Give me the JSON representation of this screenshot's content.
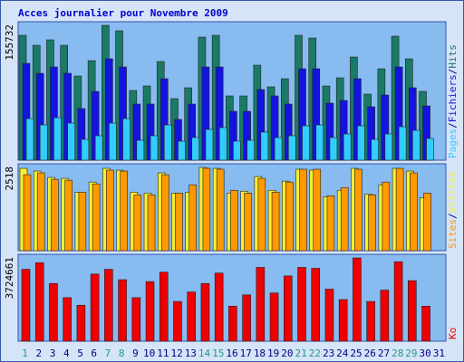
{
  "chart_data": {
    "type": "bar",
    "title": "Acces journalier pour Novembre 2009",
    "categories": [
      "1",
      "2",
      "3",
      "4",
      "5",
      "6",
      "7",
      "8",
      "9",
      "10",
      "11",
      "12",
      "13",
      "14",
      "15",
      "16",
      "17",
      "18",
      "19",
      "20",
      "21",
      "22",
      "23",
      "24",
      "25",
      "26",
      "27",
      "28",
      "29",
      "30",
      "31"
    ],
    "category_colors": [
      "#229988",
      "#000080",
      "#000080",
      "#000080",
      "#000080",
      "#000080",
      "#229988",
      "#229988",
      "#000080",
      "#000080",
      "#000080",
      "#000080",
      "#000080",
      "#229988",
      "#229988",
      "#000080",
      "#000080",
      "#000080",
      "#000080",
      "#000080",
      "#229988",
      "#229988",
      "#000080",
      "#000080",
      "#000080",
      "#000080",
      "#000080",
      "#229988",
      "#229988",
      "#000080",
      "#000080"
    ],
    "legend_separator": "/",
    "panels": [
      {
        "ylim": [
          0,
          155732
        ],
        "series": [
          {
            "name": "Hits",
            "color": "#1a7a66",
            "values": [
              144210,
              132715,
              138985,
              132715,
              97185,
              114950,
              155732,
              149435,
              80465,
              85690,
              113905,
              71060,
              83600,
              142120,
              144210,
              74195,
              74195,
              109725,
              84645,
              94050,
              144210,
              141075,
              85690,
              95095,
              119130,
              76285,
              105545,
              143165,
              117040,
              79420,
              null
            ]
          },
          {
            "name": "Fichiers",
            "color": "#1414e0",
            "values": [
              111815,
              100320,
              107635,
              100320,
              59565,
              79420,
              117040,
              107635,
              64790,
              64790,
              94050,
              47025,
              64790,
              107635,
              107635,
              56430,
              56430,
              81510,
              74195,
              64790,
              105545,
              105545,
              65835,
              68970,
              94050,
              61655,
              75240,
              107635,
              83600,
              62700,
              null
            ]
          },
          {
            "name": "Pages",
            "color": "#33ccff",
            "values": [
              48070,
              40755,
              49115,
              42845,
              24035,
              28215,
              42845,
              48070,
              22990,
              28215,
              40755,
              21945,
              26125,
              35530,
              37620,
              21945,
              22990,
              32395,
              26125,
              28215,
              39710,
              40755,
              26125,
              30305,
              39710,
              24035,
              30305,
              38665,
              34485,
              25080,
              null
            ]
          }
        ]
      },
      {
        "ylim": [
          0,
          2518
        ],
        "series": [
          {
            "name": "Visites",
            "color": "#f8f030",
            "values": [
              2490,
              2407,
              2214,
              2186,
              1771,
              2075,
              2490,
              2435,
              1771,
              1743,
              2352,
              1743,
              1771,
              2518,
              2490,
              1743,
              1799,
              2241,
              1826,
              2103,
              2463,
              2435,
              1633,
              1826,
              2490,
              1716,
              1992,
              2490,
              2407,
              1605,
              null
            ]
          },
          {
            "name": "Sites",
            "color": "#ff9900",
            "values": [
              2297,
              2352,
              2158,
              2131,
              1771,
              2020,
              2435,
              2407,
              1688,
              1688,
              2297,
              1743,
              1992,
              2490,
              2463,
              1826,
              1743,
              2186,
              1771,
              2075,
              2463,
              2463,
              1660,
              1909,
              2463,
              1688,
              2075,
              2490,
              2352,
              1743,
              null
            ]
          }
        ]
      },
      {
        "ylim": [
          0,
          3724661
        ],
        "series": [
          {
            "name": "Ko",
            "color": "#ee0000",
            "values": [
              3216776,
              3513058,
              2581886,
              1946996,
              1608388,
              3005146,
              3216776,
              2751190,
              1946996,
              2666538,
              3089798,
              1777692,
              2200952,
              2581886,
              3047472,
              1566062,
              2073974,
              3301428,
              2158626,
              2920494,
              3301428,
              3259102,
              2327930,
              1862344,
              3724661,
              1777692,
              2285604,
              3555384,
              2708864,
              1566062,
              null
            ]
          }
        ]
      }
    ]
  }
}
